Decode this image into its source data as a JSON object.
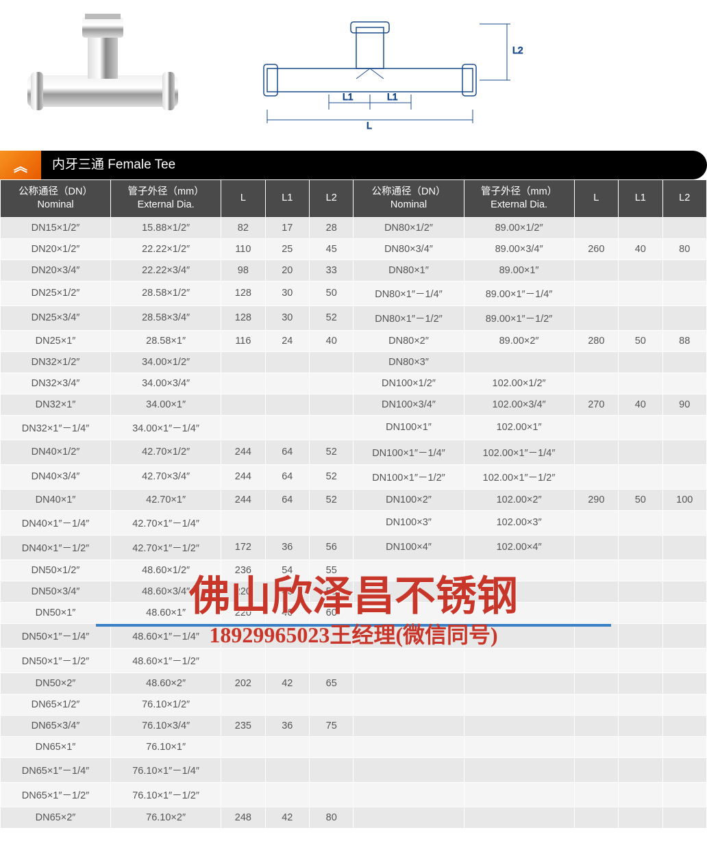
{
  "title": "内牙三通 Female Tee",
  "diagram_labels": {
    "L": "L",
    "L1": "L1",
    "L2": "L2"
  },
  "watermark": {
    "line1": "佛山欣泽昌不锈钢",
    "line2": "18929965023王经理(微信同号)"
  },
  "headers": {
    "nominal": "公称通径（DN）\nNominal",
    "ext": "管子外径（mm）\nExternal Dia.",
    "L": "L",
    "L1": "L1",
    "L2": "L2"
  },
  "rows": [
    {
      "a": [
        "DN15×1/2″",
        "15.88×1/2″",
        "82",
        "17",
        "28"
      ],
      "b": [
        "DN80×1/2″",
        "89.00×1/2″",
        "",
        "",
        ""
      ]
    },
    {
      "a": [
        "DN20×1/2″",
        "22.22×1/2″",
        "110",
        "25",
        "45"
      ],
      "b": [
        "DN80×3/4″",
        "89.00×3/4″",
        "260",
        "40",
        "80"
      ]
    },
    {
      "a": [
        "DN20×3/4″",
        "22.22×3/4″",
        "98",
        "20",
        "33"
      ],
      "b": [
        "DN80×1″",
        "89.00×1″",
        "",
        "",
        ""
      ]
    },
    {
      "a": [
        "DN25×1/2″",
        "28.58×1/2″",
        "128",
        "30",
        "50"
      ],
      "b": [
        "DN80×1″－1/4″",
        "89.00×1″－1/4″",
        "",
        "",
        ""
      ]
    },
    {
      "a": [
        "DN25×3/4″",
        "28.58×3/4″",
        "128",
        "30",
        "52"
      ],
      "b": [
        "DN80×1″－1/2″",
        "89.00×1″－1/2″",
        "",
        "",
        ""
      ]
    },
    {
      "a": [
        "DN25×1″",
        "28.58×1″",
        "116",
        "24",
        "40"
      ],
      "b": [
        "DN80×2″",
        "89.00×2″",
        "280",
        "50",
        "88"
      ]
    },
    {
      "a": [
        "DN32×1/2″",
        "34.00×1/2″",
        "",
        "",
        ""
      ],
      "b": [
        "DN80×3″",
        "",
        "",
        "",
        ""
      ]
    },
    {
      "a": [
        "DN32×3/4″",
        "34.00×3/4″",
        "",
        "",
        ""
      ],
      "b": [
        "DN100×1/2″",
        "102.00×1/2″",
        "",
        "",
        ""
      ]
    },
    {
      "a": [
        "DN32×1″",
        "34.00×1″",
        "",
        "",
        ""
      ],
      "b": [
        "DN100×3/4″",
        "102.00×3/4″",
        "270",
        "40",
        "90"
      ]
    },
    {
      "a": [
        "DN32×1″－1/4″",
        "34.00×1″－1/4″",
        "",
        "",
        ""
      ],
      "b": [
        "DN100×1″",
        "102.00×1″",
        "",
        "",
        ""
      ]
    },
    {
      "a": [
        "DN40×1/2″",
        "42.70×1/2″",
        "244",
        "64",
        "52"
      ],
      "b": [
        "DN100×1″－1/4″",
        "102.00×1″－1/4″",
        "",
        "",
        ""
      ]
    },
    {
      "a": [
        "DN40×3/4″",
        "42.70×3/4″",
        "244",
        "64",
        "52"
      ],
      "b": [
        "DN100×1″－1/2″",
        "102.00×1″－1/2″",
        "",
        "",
        ""
      ]
    },
    {
      "a": [
        "DN40×1″",
        "42.70×1″",
        "244",
        "64",
        "52"
      ],
      "b": [
        "DN100×2″",
        "102.00×2″",
        "290",
        "50",
        "100"
      ]
    },
    {
      "a": [
        "DN40×1″－1/4″",
        "42.70×1″－1/4″",
        "",
        "",
        ""
      ],
      "b": [
        "DN100×3″",
        "102.00×3″",
        "",
        "",
        ""
      ]
    },
    {
      "a": [
        "DN40×1″－1/2″",
        "42.70×1″－1/2″",
        "172",
        "36",
        "56"
      ],
      "b": [
        "DN100×4″",
        "102.00×4″",
        "",
        "",
        ""
      ]
    },
    {
      "a": [
        "DN50×1/2″",
        "48.60×1/2″",
        "236",
        "54",
        "55"
      ],
      "b": [
        "",
        "",
        "",
        "",
        ""
      ]
    },
    {
      "a": [
        "DN50×3/4″",
        "48.60×3/4″",
        "220",
        "46",
        "58"
      ],
      "b": [
        "",
        "",
        "",
        "",
        ""
      ]
    },
    {
      "a": [
        "DN50×1″",
        "48.60×1″",
        "220",
        "46",
        "60"
      ],
      "b": [
        "",
        "",
        "",
        "",
        ""
      ]
    },
    {
      "a": [
        "DN50×1″－1/4″",
        "48.60×1″－1/4″",
        "",
        "",
        ""
      ],
      "b": [
        "",
        "",
        "",
        "",
        ""
      ]
    },
    {
      "a": [
        "DN50×1″－1/2″",
        "48.60×1″－1/2″",
        "",
        "",
        ""
      ],
      "b": [
        "",
        "",
        "",
        "",
        ""
      ]
    },
    {
      "a": [
        "DN50×2″",
        "48.60×2″",
        "202",
        "42",
        "65"
      ],
      "b": [
        "",
        "",
        "",
        "",
        ""
      ]
    },
    {
      "a": [
        "DN65×1/2″",
        "76.10×1/2″",
        "",
        "",
        ""
      ],
      "b": [
        "",
        "",
        "",
        "",
        ""
      ]
    },
    {
      "a": [
        "DN65×3/4″",
        "76.10×3/4″",
        "235",
        "36",
        "75"
      ],
      "b": [
        "",
        "",
        "",
        "",
        ""
      ]
    },
    {
      "a": [
        "DN65×1″",
        "76.10×1″",
        "",
        "",
        ""
      ],
      "b": [
        "",
        "",
        "",
        "",
        ""
      ]
    },
    {
      "a": [
        "DN65×1″－1/4″",
        "76.10×1″－1/4″",
        "",
        "",
        ""
      ],
      "b": [
        "",
        "",
        "",
        "",
        ""
      ]
    },
    {
      "a": [
        "DN65×1″－1/2″",
        "76.10×1″－1/2″",
        "",
        "",
        ""
      ],
      "b": [
        "",
        "",
        "",
        "",
        ""
      ]
    },
    {
      "a": [
        "DN65×2″",
        "76.10×2″",
        "248",
        "42",
        "80"
      ],
      "b": [
        "",
        "",
        "",
        "",
        ""
      ]
    }
  ],
  "colwidths": [
    "15%",
    "15%",
    "6%",
    "6%",
    "6%",
    "15%",
    "15%",
    "6%",
    "6%",
    "6%"
  ]
}
